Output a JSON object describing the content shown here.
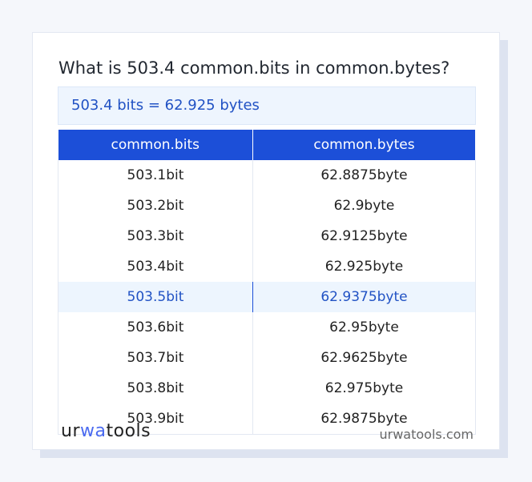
{
  "title": "What is 503.4 common.bits in common.bytes?",
  "result": "503.4 bits = 62.925 bytes",
  "table": {
    "headers": [
      "common.bits",
      "common.bytes"
    ],
    "rows": [
      [
        "503.1bit",
        "62.8875byte"
      ],
      [
        "503.2bit",
        "62.9byte"
      ],
      [
        "503.3bit",
        "62.9125byte"
      ],
      [
        "503.4bit",
        "62.925byte"
      ],
      [
        "503.5bit",
        "62.9375byte"
      ],
      [
        "503.6bit",
        "62.95byte"
      ],
      [
        "503.7bit",
        "62.9625byte"
      ],
      [
        "503.8bit",
        "62.975byte"
      ],
      [
        "503.9bit",
        "62.9875byte"
      ]
    ],
    "highlighted_row": 4
  },
  "footer": {
    "logo": "urwatools",
    "logo_parts": [
      "ur",
      "wa",
      "tools"
    ],
    "site": "urwatools.com"
  },
  "colors": {
    "accent": "#1c4fd8",
    "highlight_bg": "#edf5fe"
  }
}
